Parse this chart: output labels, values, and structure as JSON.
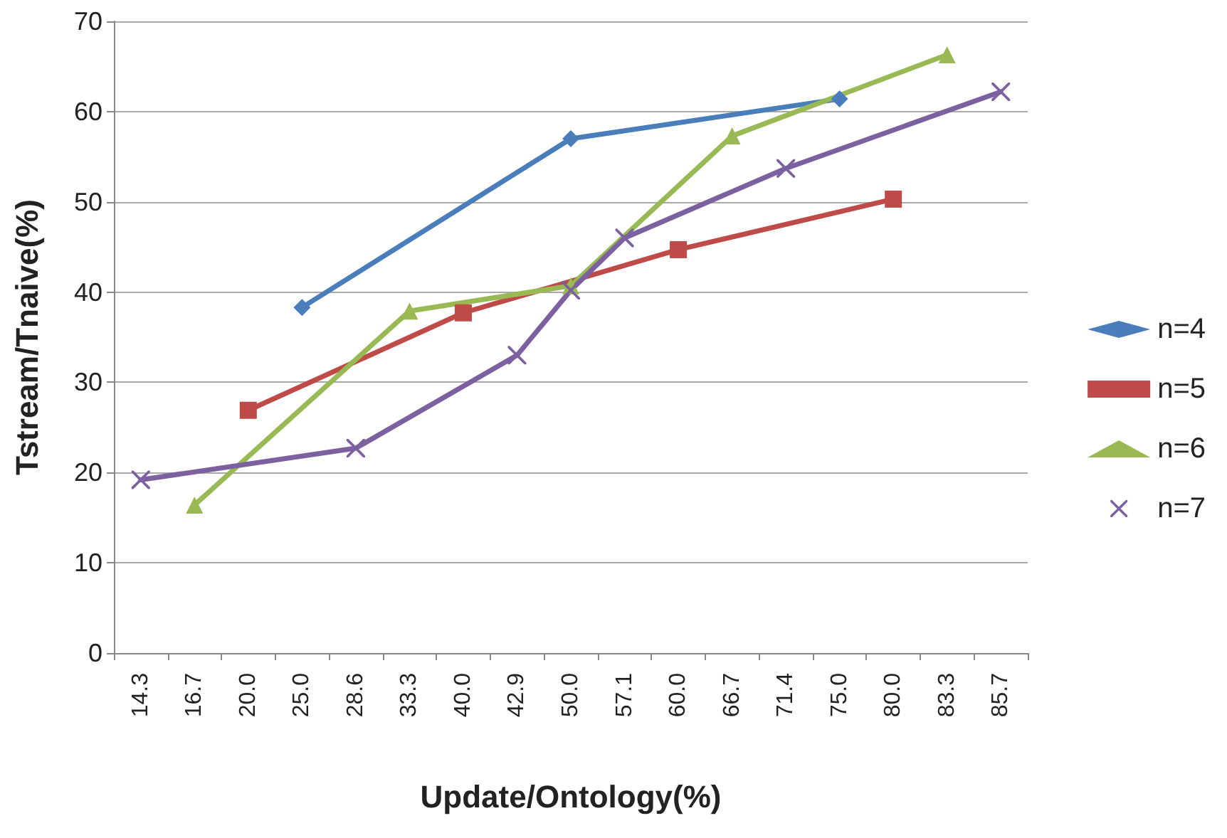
{
  "chart_data": {
    "type": "line",
    "xlabel": "Update/Ontology(%)",
    "ylabel": "Tstream/Tnaive(%)",
    "categories": [
      "14.3",
      "16.7",
      "20.0",
      "25.0",
      "28.6",
      "33.3",
      "40.0",
      "42.9",
      "50.0",
      "57.1",
      "60.0",
      "66.7",
      "71.4",
      "75.0",
      "80.0",
      "83.3",
      "85.7"
    ],
    "series": [
      {
        "name": "n=4",
        "color": "#4a7ebb",
        "marker": "diamond",
        "values": [
          null,
          null,
          null,
          38.3,
          null,
          null,
          null,
          null,
          57.0,
          null,
          null,
          null,
          null,
          61.4,
          null,
          null,
          null
        ]
      },
      {
        "name": "n=5",
        "color": "#be4b48",
        "marker": "square",
        "values": [
          null,
          null,
          26.9,
          null,
          null,
          null,
          37.7,
          null,
          null,
          null,
          44.7,
          null,
          null,
          null,
          50.3,
          null,
          null
        ]
      },
      {
        "name": "n=6",
        "color": "#98b954",
        "marker": "triangle",
        "values": [
          null,
          16.4,
          null,
          null,
          null,
          37.9,
          null,
          null,
          40.7,
          null,
          null,
          57.3,
          null,
          null,
          null,
          66.3,
          null
        ]
      },
      {
        "name": "n=7",
        "color": "#7d60a0",
        "marker": "cross",
        "values": [
          19.2,
          null,
          null,
          null,
          22.7,
          null,
          null,
          33.0,
          40.2,
          46.0,
          null,
          null,
          53.7,
          null,
          null,
          null,
          62.2
        ]
      }
    ],
    "ylim": [
      0,
      70
    ],
    "yticks": [
      0,
      10,
      20,
      30,
      40,
      50,
      60,
      70
    ],
    "grid": "y",
    "legend": "right",
    "line_style": "solid"
  }
}
